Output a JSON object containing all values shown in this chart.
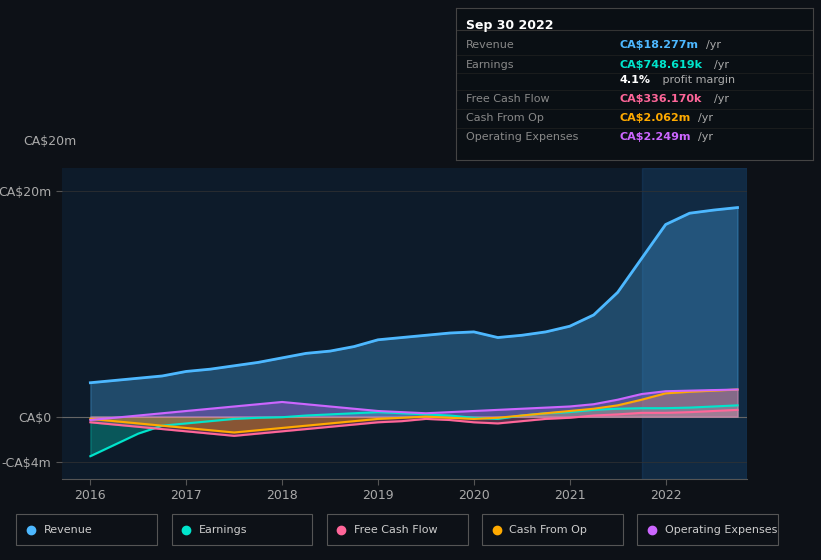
{
  "bg_color": "#0d1117",
  "plot_bg_color": "#0d1b2a",
  "title_box": {
    "date": "Sep 30 2022",
    "rows": [
      {
        "label": "Revenue",
        "value": "CA$18.277m",
        "unit": "/yr",
        "value_color": "#4db8ff"
      },
      {
        "label": "Earnings",
        "value": "CA$748.619k",
        "unit": "/yr",
        "value_color": "#00e5cc"
      },
      {
        "label": "",
        "value": "4.1%",
        "unit": " profit margin",
        "value_color": "#ffffff"
      },
      {
        "label": "Free Cash Flow",
        "value": "CA$336.170k",
        "unit": "/yr",
        "value_color": "#ff6699"
      },
      {
        "label": "Cash From Op",
        "value": "CA$2.062m",
        "unit": "/yr",
        "value_color": "#ffaa00"
      },
      {
        "label": "Operating Expenses",
        "value": "CA$2.249m",
        "unit": "/yr",
        "value_color": "#cc66ff"
      }
    ]
  },
  "y_labels": [
    "CA$20m",
    "CA$0",
    "-CA$4m"
  ],
  "y_ticks": [
    20000000,
    0,
    -4000000
  ],
  "x_labels": [
    "2016",
    "2017",
    "2018",
    "2019",
    "2020",
    "2021",
    "2022"
  ],
  "legend": [
    {
      "label": "Revenue",
      "color": "#4db8ff"
    },
    {
      "label": "Earnings",
      "color": "#00e5cc"
    },
    {
      "label": "Free Cash Flow",
      "color": "#ff6699"
    },
    {
      "label": "Cash From Op",
      "color": "#ffaa00"
    },
    {
      "label": "Operating Expenses",
      "color": "#cc66ff"
    }
  ],
  "series": {
    "x": [
      2016.0,
      2016.25,
      2016.5,
      2016.75,
      2017.0,
      2017.25,
      2017.5,
      2017.75,
      2018.0,
      2018.25,
      2018.5,
      2018.75,
      2019.0,
      2019.25,
      2019.5,
      2019.75,
      2020.0,
      2020.25,
      2020.5,
      2020.75,
      2021.0,
      2021.25,
      2021.5,
      2021.75,
      2022.0,
      2022.25,
      2022.5,
      2022.75
    ],
    "revenue": [
      3000000,
      3200000,
      3400000,
      3600000,
      4000000,
      4200000,
      4500000,
      4800000,
      5200000,
      5600000,
      5800000,
      6200000,
      6800000,
      7000000,
      7200000,
      7400000,
      7500000,
      7000000,
      7200000,
      7500000,
      8000000,
      9000000,
      11000000,
      14000000,
      17000000,
      18000000,
      18277000,
      18500000
    ],
    "earnings": [
      -3500000,
      -2500000,
      -1500000,
      -800000,
      -600000,
      -400000,
      -200000,
      -100000,
      -50000,
      100000,
      200000,
      300000,
      400000,
      300000,
      200000,
      100000,
      -100000,
      -200000,
      100000,
      300000,
      400000,
      600000,
      700000,
      748619,
      748619,
      800000,
      900000,
      1000000
    ],
    "free_cash_flow": [
      -500000,
      -700000,
      -900000,
      -1100000,
      -1300000,
      -1500000,
      -1700000,
      -1500000,
      -1300000,
      -1100000,
      -900000,
      -700000,
      -500000,
      -400000,
      -200000,
      -300000,
      -500000,
      -600000,
      -400000,
      -200000,
      -100000,
      100000,
      200000,
      336170,
      336170,
      400000,
      500000,
      600000
    ],
    "cash_from_op": [
      -200000,
      -400000,
      -600000,
      -800000,
      -1000000,
      -1200000,
      -1400000,
      -1200000,
      -1000000,
      -800000,
      -600000,
      -400000,
      -200000,
      -100000,
      0,
      -100000,
      -200000,
      -100000,
      100000,
      300000,
      500000,
      700000,
      1000000,
      1500000,
      2062000,
      2200000,
      2300000,
      2400000
    ],
    "operating_expenses": [
      -300000,
      -100000,
      100000,
      300000,
      500000,
      700000,
      900000,
      1100000,
      1300000,
      1100000,
      900000,
      700000,
      500000,
      400000,
      300000,
      400000,
      500000,
      600000,
      700000,
      800000,
      900000,
      1100000,
      1500000,
      2000000,
      2249000,
      2300000,
      2350000,
      2400000
    ]
  }
}
